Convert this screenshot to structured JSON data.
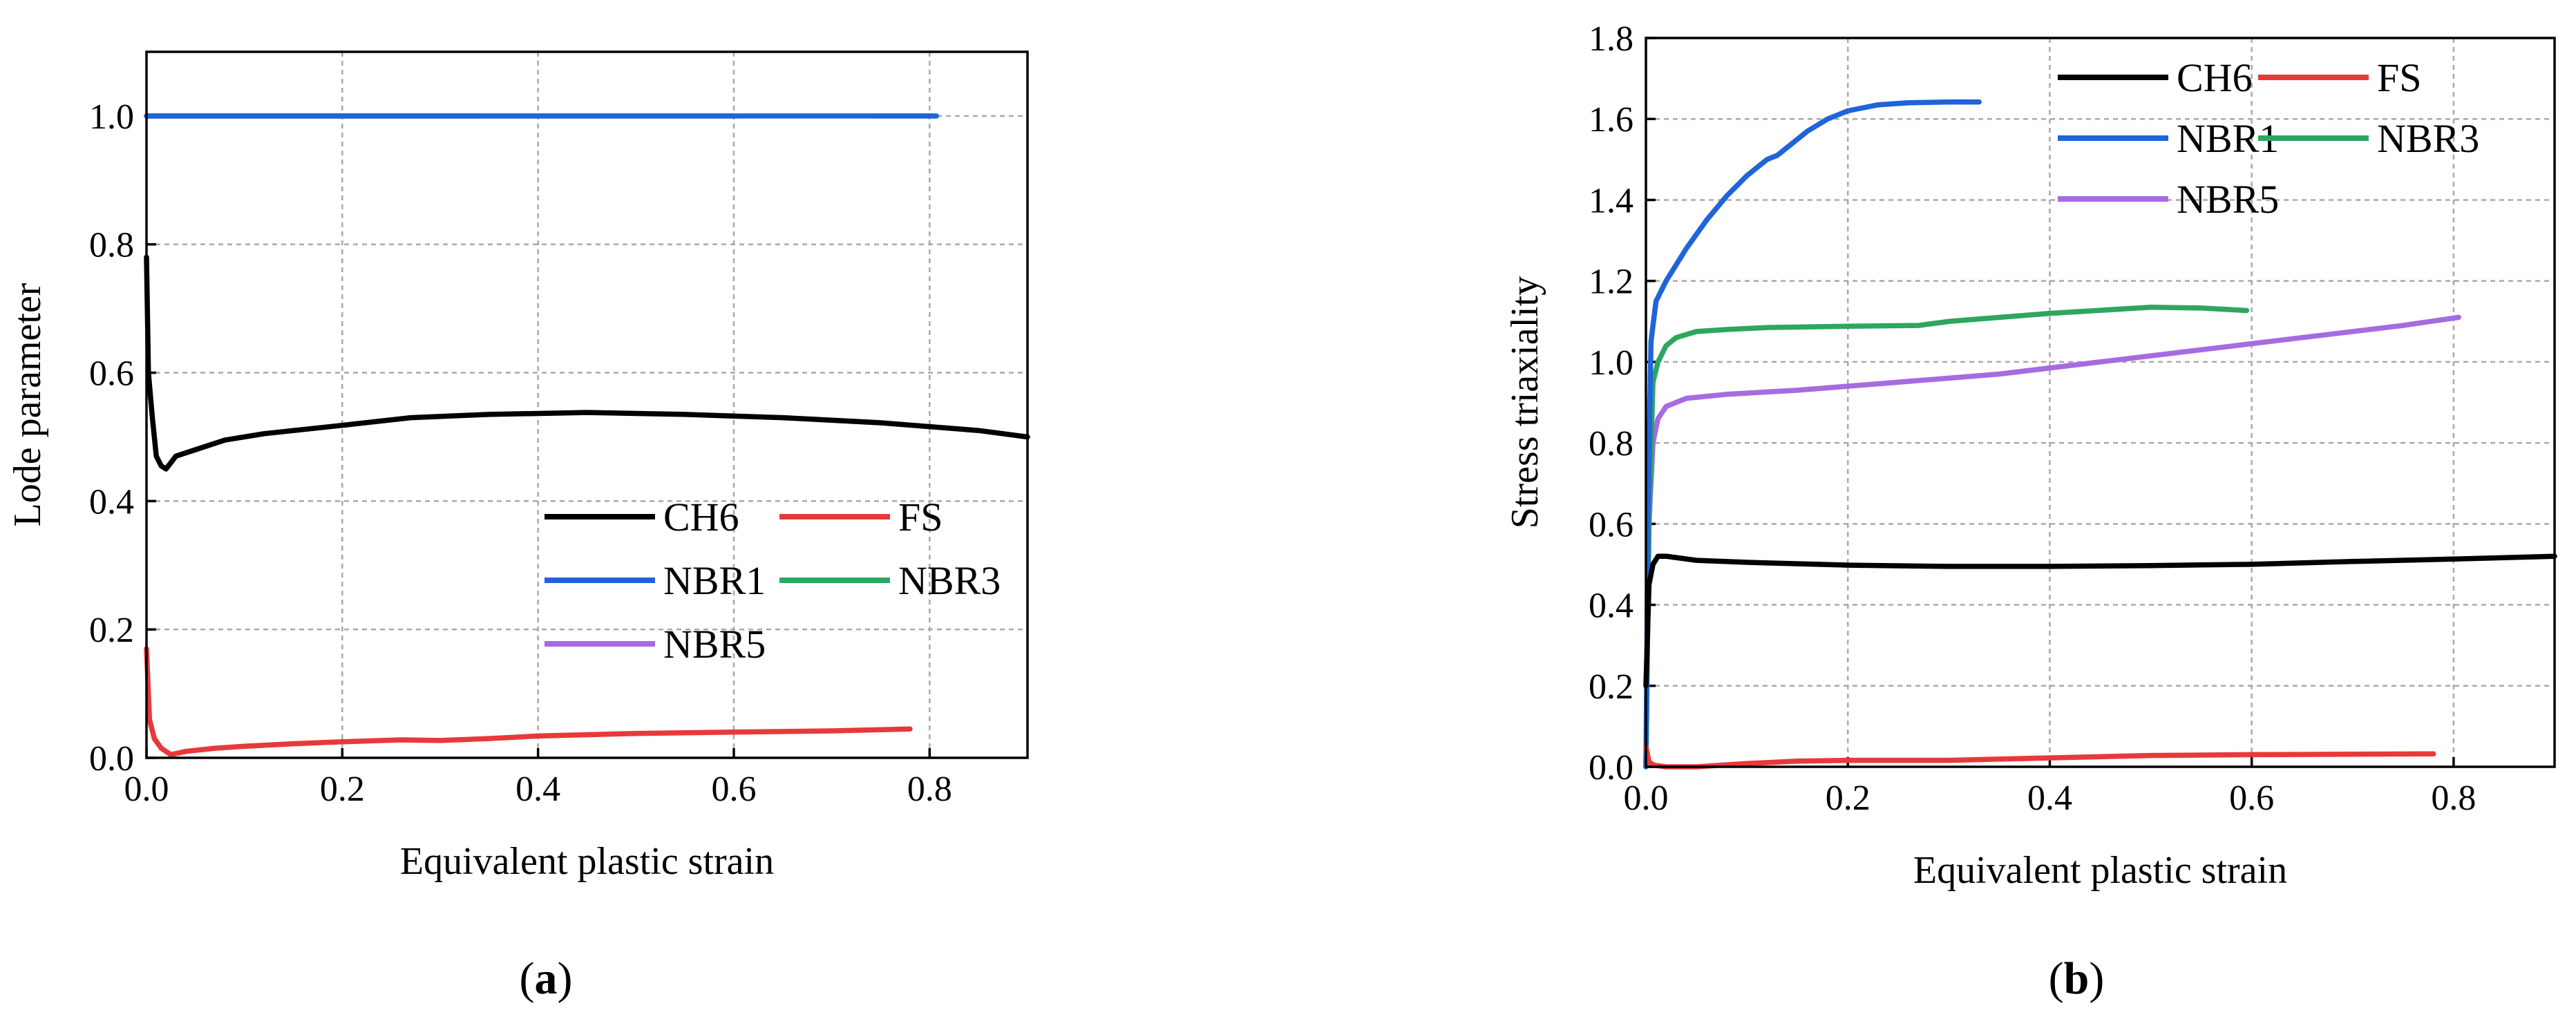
{
  "figure": {
    "panels": [
      {
        "prefix": "(",
        "letter": "a",
        "suffix": ")"
      },
      {
        "prefix": "(",
        "letter": "b",
        "suffix": ")"
      }
    ]
  },
  "colors": {
    "CH6": "#000000",
    "FS": "#e8393a",
    "NBR1": "#1f64d8",
    "NBR3": "#2ea660",
    "NBR5": "#a76be0"
  },
  "chart_data": [
    {
      "type": "line",
      "title": "",
      "xlabel": "Equivalent plastic strain",
      "ylabel": "Lode parameter",
      "xlim": [
        0.0,
        0.9
      ],
      "ylim": [
        0.0,
        1.1
      ],
      "xticks": [
        "0.0",
        "0.2",
        "0.4",
        "0.6",
        "0.8"
      ],
      "yticks": [
        "0.0",
        "0.2",
        "0.4",
        "0.6",
        "0.8",
        "1.0"
      ],
      "grid": true,
      "legend_position": "lower-right",
      "legend": [
        "CH6",
        "FS",
        "NBR1",
        "NBR3",
        "NBR5"
      ],
      "series": [
        {
          "name": "CH6",
          "x": [
            0.0,
            0.002,
            0.006,
            0.01,
            0.015,
            0.02,
            0.03,
            0.05,
            0.08,
            0.12,
            0.2,
            0.27,
            0.35,
            0.45,
            0.55,
            0.65,
            0.75,
            0.85,
            0.9
          ],
          "y": [
            0.78,
            0.6,
            0.53,
            0.47,
            0.455,
            0.45,
            0.47,
            0.48,
            0.495,
            0.505,
            0.518,
            0.53,
            0.535,
            0.538,
            0.535,
            0.53,
            0.522,
            0.51,
            0.5
          ]
        },
        {
          "name": "FS",
          "x": [
            0.0,
            0.003,
            0.008,
            0.015,
            0.025,
            0.04,
            0.07,
            0.1,
            0.15,
            0.2,
            0.26,
            0.3,
            0.35,
            0.4,
            0.5,
            0.6,
            0.7,
            0.78
          ],
          "y": [
            0.17,
            0.06,
            0.03,
            0.015,
            0.005,
            0.01,
            0.015,
            0.018,
            0.022,
            0.025,
            0.028,
            0.027,
            0.03,
            0.034,
            0.038,
            0.04,
            0.042,
            0.045
          ]
        },
        {
          "name": "NBR1",
          "x": [
            0.0,
            0.807
          ],
          "y": [
            1.0,
            1.0
          ]
        },
        {
          "name": "NBR3",
          "x": [
            0.0,
            0.6
          ],
          "y": [
            1.0,
            1.0
          ]
        },
        {
          "name": "NBR5",
          "x": [
            0.0,
            0.335
          ],
          "y": [
            1.0,
            1.0
          ]
        }
      ]
    },
    {
      "type": "line",
      "title": "",
      "xlabel": "Equivalent plastic strain",
      "ylabel": "Stress triaxiality",
      "xlim": [
        0.0,
        0.9
      ],
      "ylim": [
        0.0,
        1.8
      ],
      "xticks": [
        "0.0",
        "0.2",
        "0.4",
        "0.6",
        "0.8"
      ],
      "yticks": [
        "0.0",
        "0.2",
        "0.4",
        "0.6",
        "0.8",
        "1.0",
        "1.2",
        "1.4",
        "1.6",
        "1.8"
      ],
      "grid": true,
      "legend_position": "top-right",
      "legend": [
        "CH6",
        "FS",
        "NBR1",
        "NBR3",
        "NBR5"
      ],
      "series": [
        {
          "name": "CH6",
          "x": [
            0.0,
            0.003,
            0.007,
            0.012,
            0.02,
            0.05,
            0.1,
            0.2,
            0.3,
            0.4,
            0.5,
            0.6,
            0.7,
            0.8,
            0.9
          ],
          "y": [
            0.2,
            0.45,
            0.5,
            0.52,
            0.52,
            0.51,
            0.505,
            0.498,
            0.495,
            0.495,
            0.497,
            0.5,
            0.507,
            0.513,
            0.52
          ]
        },
        {
          "name": "FS",
          "x": [
            0.0,
            0.003,
            0.008,
            0.02,
            0.05,
            0.1,
            0.15,
            0.2,
            0.3,
            0.4,
            0.5,
            0.6,
            0.7,
            0.78
          ],
          "y": [
            0.05,
            0.012,
            0.004,
            0.0,
            0.0,
            0.008,
            0.014,
            0.016,
            0.016,
            0.022,
            0.028,
            0.03,
            0.031,
            0.032
          ]
        },
        {
          "name": "NBR1",
          "x": [
            0.0,
            0.002,
            0.005,
            0.01,
            0.02,
            0.04,
            0.06,
            0.08,
            0.1,
            0.12,
            0.13,
            0.14,
            0.16,
            0.18,
            0.2,
            0.23,
            0.26,
            0.3,
            0.33
          ],
          "y": [
            0.0,
            0.6,
            1.05,
            1.15,
            1.2,
            1.28,
            1.35,
            1.41,
            1.46,
            1.5,
            1.51,
            1.53,
            1.57,
            1.6,
            1.62,
            1.635,
            1.64,
            1.642,
            1.642
          ]
        },
        {
          "name": "NBR3",
          "x": [
            0.0,
            0.003,
            0.007,
            0.012,
            0.02,
            0.03,
            0.05,
            0.08,
            0.12,
            0.2,
            0.27,
            0.3,
            0.4,
            0.5,
            0.55,
            0.595
          ],
          "y": [
            0.0,
            0.6,
            0.95,
            1.0,
            1.04,
            1.06,
            1.075,
            1.08,
            1.085,
            1.088,
            1.09,
            1.1,
            1.12,
            1.135,
            1.133,
            1.127
          ]
        },
        {
          "name": "NBR5",
          "x": [
            0.0,
            0.003,
            0.007,
            0.012,
            0.02,
            0.04,
            0.08,
            0.15,
            0.25,
            0.35,
            0.45,
            0.55,
            0.65,
            0.75,
            0.805
          ],
          "y": [
            0.0,
            0.6,
            0.8,
            0.86,
            0.89,
            0.91,
            0.92,
            0.93,
            0.95,
            0.97,
            1.0,
            1.03,
            1.06,
            1.09,
            1.11
          ]
        }
      ]
    }
  ]
}
